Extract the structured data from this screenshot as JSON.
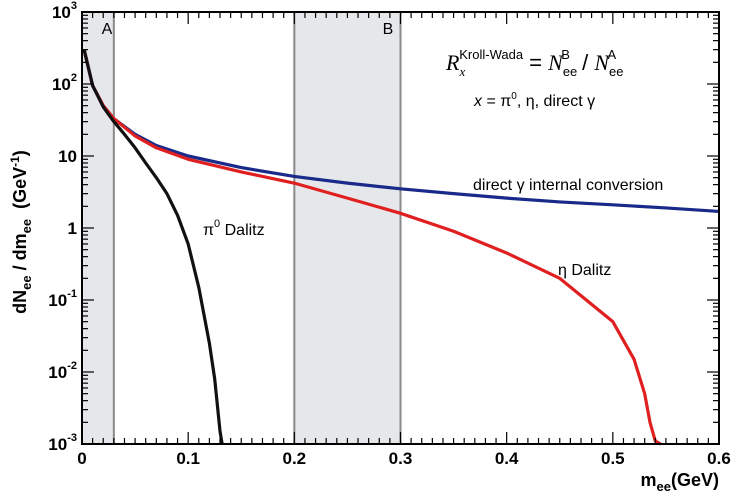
{
  "chart_data": {
    "type": "line",
    "title": "",
    "xlabel": {
      "main": "m",
      "sub": "ee",
      "unit": "(GeV)"
    },
    "ylabel": {
      "main1": "dN",
      "sub1": "ee",
      "sep": " / dm",
      "sub2": "ee",
      "unit": "(GeV",
      "unit_sup": "-1",
      "unit_close": ")"
    },
    "xlim": [
      0,
      0.6
    ],
    "ylim_log10": [
      -3,
      3
    ],
    "yscale": "log",
    "grid": false,
    "x_ticks": [
      "0",
      "0.1",
      "0.2",
      "0.3",
      "0.4",
      "0.5",
      "0.6"
    ],
    "y_ticks": [
      {
        "base": "10",
        "exp": "-3"
      },
      {
        "base": "10",
        "exp": "-2"
      },
      {
        "base": "10",
        "exp": "-1"
      },
      {
        "base": "1",
        "exp": ""
      },
      {
        "base": "10",
        "exp": ""
      },
      {
        "base": "10",
        "exp": "2"
      },
      {
        "base": "10",
        "exp": "3"
      }
    ],
    "regions": [
      {
        "label": "A",
        "x_range": [
          0,
          0.03
        ]
      },
      {
        "label": "B",
        "x_range": [
          0.2,
          0.3
        ]
      }
    ],
    "series": [
      {
        "name": "direct γ internal conversion",
        "color": "#1a2a8a",
        "x": [
          0.002,
          0.01,
          0.02,
          0.03,
          0.05,
          0.07,
          0.1,
          0.15,
          0.2,
          0.25,
          0.3,
          0.35,
          0.4,
          0.45,
          0.5,
          0.55,
          0.6
        ],
        "y": [
          300,
          95,
          50,
          33,
          20,
          14,
          10,
          6.9,
          5.2,
          4.2,
          3.5,
          3.0,
          2.6,
          2.3,
          2.1,
          1.9,
          1.7
        ]
      },
      {
        "name": "η Dalitz",
        "color": "#e02020",
        "x": [
          0.002,
          0.01,
          0.02,
          0.03,
          0.05,
          0.07,
          0.1,
          0.15,
          0.2,
          0.25,
          0.3,
          0.35,
          0.4,
          0.45,
          0.5,
          0.52,
          0.53,
          0.535,
          0.54,
          0.545
        ],
        "y": [
          300,
          95,
          50,
          33,
          19,
          13,
          9,
          6,
          4.2,
          2.6,
          1.6,
          0.9,
          0.45,
          0.2,
          0.05,
          0.015,
          0.005,
          0.002,
          0.0011,
          0.001
        ]
      },
      {
        "name": "π0 Dalitz",
        "color": "#111111",
        "x": [
          0.002,
          0.01,
          0.02,
          0.03,
          0.04,
          0.05,
          0.06,
          0.07,
          0.08,
          0.09,
          0.1,
          0.11,
          0.12,
          0.125,
          0.13,
          0.132
        ],
        "y": [
          300,
          95,
          48,
          30,
          20,
          13,
          8,
          5,
          3,
          1.5,
          0.6,
          0.15,
          0.025,
          0.008,
          0.0015,
          0.001
        ]
      }
    ],
    "annotations": {
      "formula": {
        "R": "R",
        "R_sub": "x",
        "R_sup": "Kroll-Wada",
        "eq": " = ",
        "N": "N",
        "NB_sub": "ee",
        "NB_sup": "B",
        "slash": " / ",
        "NA_sub": "ee",
        "NA_sup": "A"
      },
      "x_list": {
        "x": "x",
        "rest": " = π",
        "pi_sup": "0",
        "rest2": ", η, direct γ"
      },
      "pi0_label": {
        "pi": "π",
        "sup": "0",
        "rest": " Dalitz"
      },
      "eta_label": "η Dalitz",
      "gamma_label": "direct γ internal conversion"
    }
  }
}
